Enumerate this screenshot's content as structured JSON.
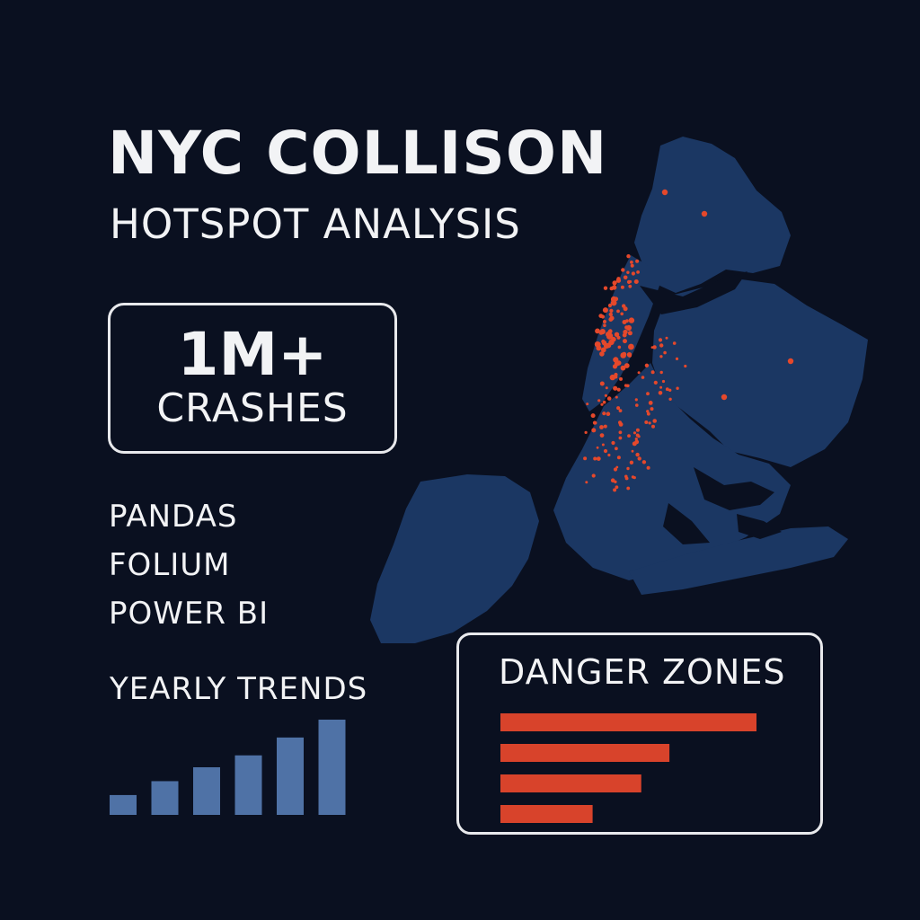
{
  "title": "NYC COLLISON",
  "subtitle": "HOTSPOT ANALYSIS",
  "stat": {
    "value": "1M+",
    "label": "CRASHES"
  },
  "tools": [
    "PANDAS",
    "FOLIUM",
    "POWER BI"
  ],
  "colors": {
    "background": "#0a1020",
    "map_fill": "#1b3763",
    "hotspot": "#e5482b",
    "trend_bar": "#4f72a6",
    "danger_bar": "#d8432b"
  },
  "chart_data": [
    {
      "type": "bar",
      "title": "YEARLY TRENDS",
      "orientation": "vertical",
      "values": [
        1,
        1.7,
        2.4,
        3.0,
        3.9,
        4.8
      ],
      "axes_visible": false
    },
    {
      "type": "bar",
      "title": "DANGER ZONES",
      "orientation": "horizontal",
      "values": [
        100,
        66,
        55,
        36
      ],
      "axes_visible": false
    }
  ]
}
